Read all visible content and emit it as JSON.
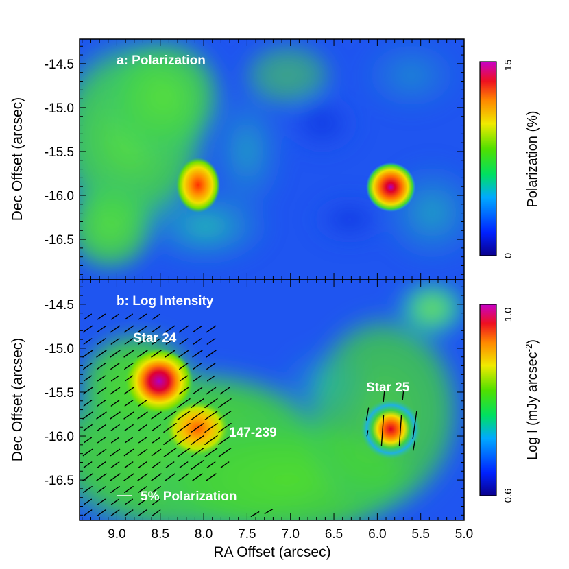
{
  "chart_data": [
    {
      "type": "heatmap",
      "panel_label": "a: Polarization",
      "ylabel": "Dec Offset (arcsec)",
      "xlabel": "",
      "xlim": [
        9.43,
        5.0
      ],
      "ylim": [
        -16.96,
        -14.22
      ],
      "x_ticks": [
        "9.0",
        "8.5",
        "8.0",
        "7.5",
        "7.0",
        "6.5",
        "6.0",
        "5.5",
        "5.0"
      ],
      "y_ticks": [
        "-14.5",
        "-15.0",
        "-15.5",
        "-16.0",
        "-16.5"
      ],
      "colorbar": {
        "label": "Polarization (%)",
        "min": 0,
        "max": 15,
        "min_label": "0",
        "max_label": "15"
      },
      "hotspots": [
        {
          "x": 8.0,
          "y": -15.89,
          "value": 11
        },
        {
          "x": 5.82,
          "y": -15.93,
          "value": 14
        }
      ]
    },
    {
      "type": "heatmap",
      "panel_label": "b: Log Intensity",
      "ylabel": "Dec Offset (arcsec)",
      "xlabel": "RA Offset (arcsec)",
      "xlim": [
        9.43,
        5.0
      ],
      "ylim": [
        -16.96,
        -14.22
      ],
      "x_ticks": [
        "9.0",
        "8.5",
        "8.0",
        "7.5",
        "7.0",
        "6.5",
        "6.0",
        "5.5",
        "5.0"
      ],
      "y_ticks": [
        "-14.5",
        "-15.0",
        "-15.5",
        "-16.0",
        "-16.5"
      ],
      "colorbar": {
        "label": "Log I (mJy arcsec",
        "label_sup": "-2",
        "label_end": ")",
        "min": 0.6,
        "max": 1.0,
        "min_label": "0.6",
        "max_label": "1.0"
      },
      "annotations": [
        {
          "text": "Star 24",
          "x": 8.5,
          "y": -15.35
        },
        {
          "text": "147-239",
          "x": 8.0,
          "y": -15.9
        },
        {
          "text": "Star 25",
          "x": 5.8,
          "y": -15.92
        },
        {
          "text": "5% Polarization"
        }
      ],
      "sources": [
        {
          "x": 8.5,
          "y": -15.35,
          "value": 1.0
        },
        {
          "x": 8.0,
          "y": -15.9,
          "value": 0.88
        },
        {
          "x": 5.8,
          "y": -15.92,
          "value": 0.92
        }
      ]
    }
  ],
  "colors": {
    "background_blue": "#1f55f0",
    "green": "#38d42a",
    "yellow": "#f0e600",
    "orange": "#ff7300",
    "red": "#e0002a",
    "magenta": "#c000c8"
  }
}
